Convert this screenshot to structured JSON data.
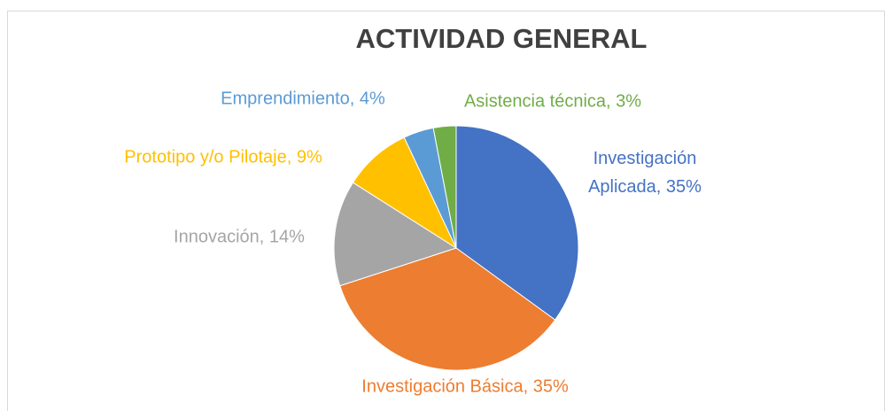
{
  "chart_data": {
    "type": "pie",
    "title": "ACTIVIDAD GENERAL",
    "categories": [
      "Investigación Aplicada",
      "Investigación Básica",
      "Innovación",
      "Prototipo y/o Pilotaje",
      "Emprendimiento",
      "Asistencia técnica"
    ],
    "values": [
      35,
      35,
      14,
      9,
      4,
      3
    ],
    "value_labels": [
      "Investigación Aplicada, 35%",
      "Investigación Básica, 35%",
      "Innovación, 14%",
      "Prototipo y/o Pilotaje, 9%",
      "Emprendimiento, 4%",
      "Asistencia técnica, 3%"
    ],
    "colors": [
      "#4472c4",
      "#ed7d31",
      "#a5a5a5",
      "#ffc000",
      "#5b9bd5",
      "#70ad47"
    ]
  }
}
